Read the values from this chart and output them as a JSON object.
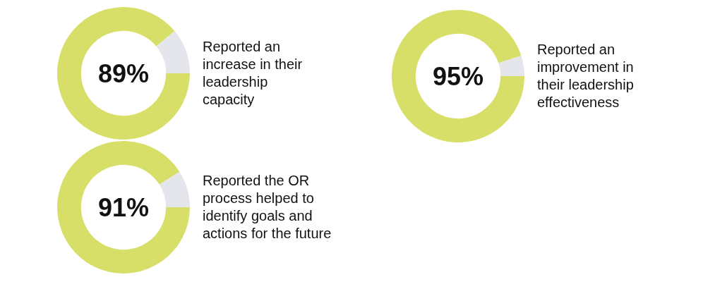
{
  "chart_data": [
    {
      "type": "donut",
      "title": "Reported an increase in their leadership capacity",
      "categories": [
        null,
        null
      ],
      "values": [
        89,
        11
      ],
      "colors": [
        "#d7df68",
        "#e5e6eb"
      ],
      "value_labels": [
        "89%",
        null
      ]
    },
    {
      "type": "donut",
      "title": "Reported an improvement in their leadership effectiveness",
      "categories": [
        null,
        null
      ],
      "values": [
        95,
        5
      ],
      "colors": [
        "#d7df68",
        "#e5e6eb"
      ],
      "value_labels": [
        "95%",
        null
      ]
    },
    {
      "type": "donut",
      "title": "Reported the OR process helped to identify goals and actions for the future",
      "categories": [
        null,
        null
      ],
      "values": [
        91,
        9
      ],
      "colors": [
        "#d7df68",
        "#e5e6eb"
      ],
      "value_labels": [
        "91%",
        null
      ]
    }
  ]
}
